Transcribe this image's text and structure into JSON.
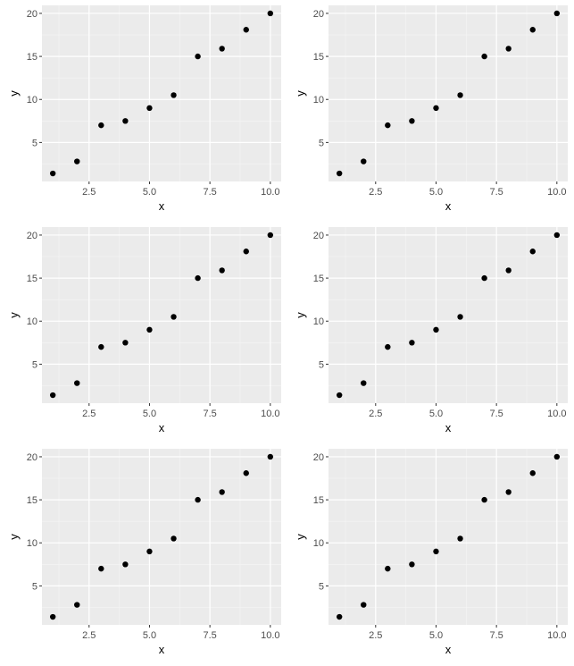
{
  "colors": {
    "panel_background": "#ebebeb",
    "grid_major": "#ffffff",
    "grid_minor": "#f5f5f5",
    "point": "#000000",
    "tick_text": "#4d4d4d",
    "tick_mark": "#333333"
  },
  "chart_data": [
    {
      "type": "scatter",
      "xlabel": "x",
      "ylabel": "y",
      "xlim": [
        0.55,
        10.45
      ],
      "ylim": [
        0.47,
        20.93
      ],
      "xticks": [
        2.5,
        5.0,
        7.5,
        10.0
      ],
      "xtick_labels": [
        "2.5",
        "5.0",
        "7.5",
        "10.0"
      ],
      "yticks": [
        5,
        10,
        15,
        20
      ],
      "ytick_labels": [
        "5",
        "10",
        "15",
        "20"
      ],
      "grid": true,
      "legend": "none",
      "x": [
        1,
        2,
        3,
        4,
        5,
        6,
        7,
        8,
        9,
        10
      ],
      "y": [
        1.4,
        2.8,
        7.0,
        7.5,
        9.0,
        10.5,
        15.0,
        15.9,
        18.1,
        20.0
      ]
    },
    {
      "type": "scatter",
      "xlabel": "x",
      "ylabel": "y",
      "xlim": [
        0.55,
        10.45
      ],
      "ylim": [
        0.47,
        20.93
      ],
      "xticks": [
        2.5,
        5.0,
        7.5,
        10.0
      ],
      "xtick_labels": [
        "2.5",
        "5.0",
        "7.5",
        "10.0"
      ],
      "yticks": [
        5,
        10,
        15,
        20
      ],
      "ytick_labels": [
        "5",
        "10",
        "15",
        "20"
      ],
      "grid": true,
      "legend": "none",
      "x": [
        1,
        2,
        3,
        4,
        5,
        6,
        7,
        8,
        9,
        10
      ],
      "y": [
        1.4,
        2.8,
        7.0,
        7.5,
        9.0,
        10.5,
        15.0,
        15.9,
        18.1,
        20.0
      ]
    },
    {
      "type": "scatter",
      "xlabel": "x",
      "ylabel": "y",
      "xlim": [
        0.55,
        10.45
      ],
      "ylim": [
        0.47,
        20.93
      ],
      "xticks": [
        2.5,
        5.0,
        7.5,
        10.0
      ],
      "xtick_labels": [
        "2.5",
        "5.0",
        "7.5",
        "10.0"
      ],
      "yticks": [
        5,
        10,
        15,
        20
      ],
      "ytick_labels": [
        "5",
        "10",
        "15",
        "20"
      ],
      "grid": true,
      "legend": "none",
      "x": [
        1,
        2,
        3,
        4,
        5,
        6,
        7,
        8,
        9,
        10
      ],
      "y": [
        1.4,
        2.8,
        7.0,
        7.5,
        9.0,
        10.5,
        15.0,
        15.9,
        18.1,
        20.0
      ]
    },
    {
      "type": "scatter",
      "xlabel": "x",
      "ylabel": "y",
      "xlim": [
        0.55,
        10.45
      ],
      "ylim": [
        0.47,
        20.93
      ],
      "xticks": [
        2.5,
        5.0,
        7.5,
        10.0
      ],
      "xtick_labels": [
        "2.5",
        "5.0",
        "7.5",
        "10.0"
      ],
      "yticks": [
        5,
        10,
        15,
        20
      ],
      "ytick_labels": [
        "5",
        "10",
        "15",
        "20"
      ],
      "grid": true,
      "legend": "none",
      "x": [
        1,
        2,
        3,
        4,
        5,
        6,
        7,
        8,
        9,
        10
      ],
      "y": [
        1.4,
        2.8,
        7.0,
        7.5,
        9.0,
        10.5,
        15.0,
        15.9,
        18.1,
        20.0
      ]
    },
    {
      "type": "scatter",
      "xlabel": "x",
      "ylabel": "y",
      "xlim": [
        0.55,
        10.45
      ],
      "ylim": [
        0.47,
        20.93
      ],
      "xticks": [
        2.5,
        5.0,
        7.5,
        10.0
      ],
      "xtick_labels": [
        "2.5",
        "5.0",
        "7.5",
        "10.0"
      ],
      "yticks": [
        5,
        10,
        15,
        20
      ],
      "ytick_labels": [
        "5",
        "10",
        "15",
        "20"
      ],
      "grid": true,
      "legend": "none",
      "x": [
        1,
        2,
        3,
        4,
        5,
        6,
        7,
        8,
        9,
        10
      ],
      "y": [
        1.4,
        2.8,
        7.0,
        7.5,
        9.0,
        10.5,
        15.0,
        15.9,
        18.1,
        20.0
      ]
    },
    {
      "type": "scatter",
      "xlabel": "x",
      "ylabel": "y",
      "xlim": [
        0.55,
        10.45
      ],
      "ylim": [
        0.47,
        20.93
      ],
      "xticks": [
        2.5,
        5.0,
        7.5,
        10.0
      ],
      "xtick_labels": [
        "2.5",
        "5.0",
        "7.5",
        "10.0"
      ],
      "yticks": [
        5,
        10,
        15,
        20
      ],
      "ytick_labels": [
        "5",
        "10",
        "15",
        "20"
      ],
      "grid": true,
      "legend": "none",
      "x": [
        1,
        2,
        3,
        4,
        5,
        6,
        7,
        8,
        9,
        10
      ],
      "y": [
        1.4,
        2.8,
        7.0,
        7.5,
        9.0,
        10.5,
        15.0,
        15.9,
        18.1,
        20.0
      ]
    }
  ]
}
